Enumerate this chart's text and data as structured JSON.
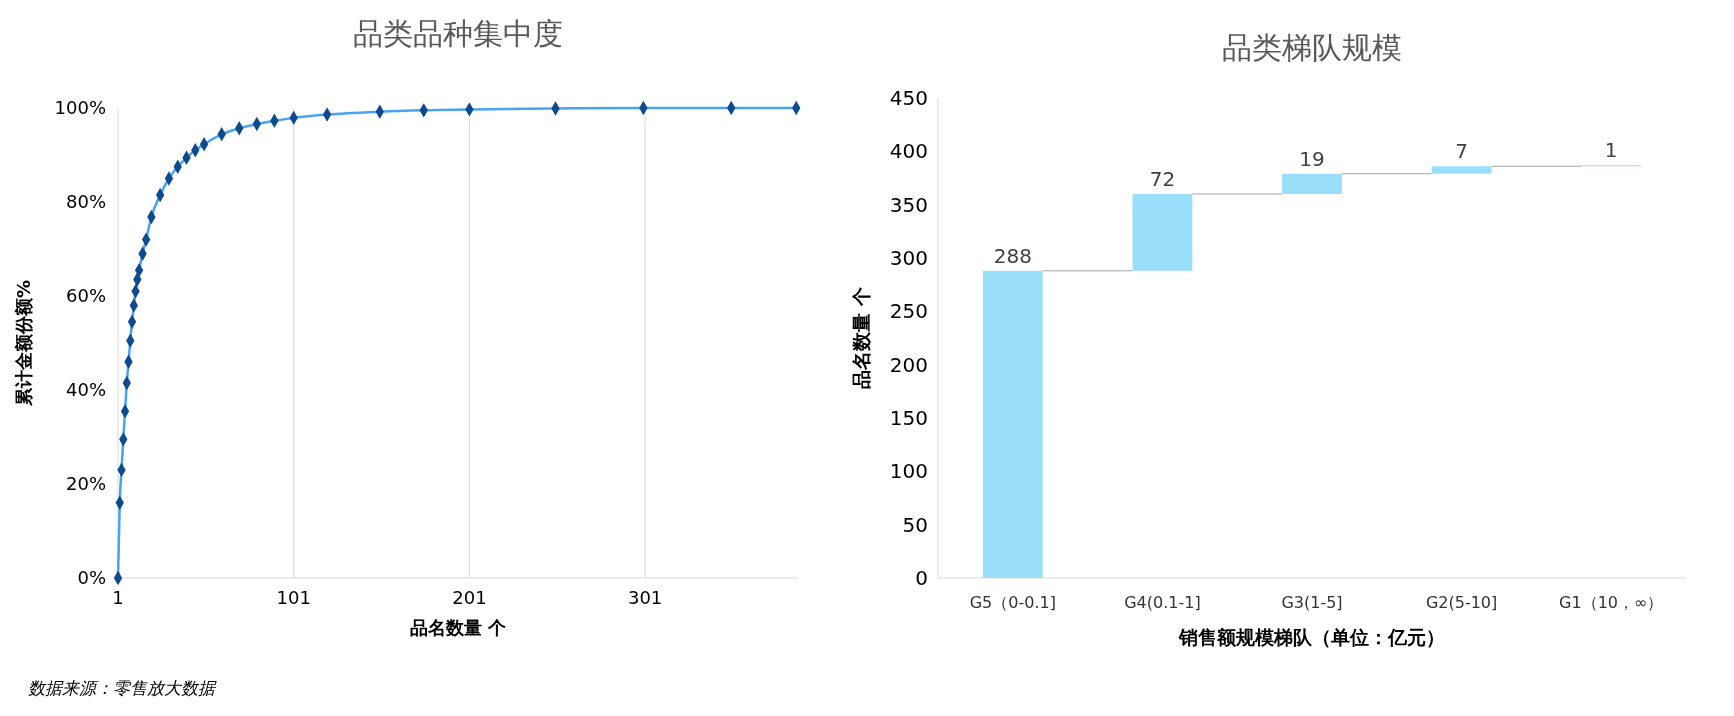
{
  "chart_data": [
    {
      "type": "line",
      "title": "品类品种集中度",
      "xlabel": "品名数量 个",
      "ylabel": "累计金额份额%",
      "grid": "x",
      "marker": "diamond",
      "line_style": "solid",
      "x": [
        1,
        2,
        3,
        4,
        5,
        6,
        7,
        8,
        9,
        10,
        11,
        12,
        13,
        15,
        17,
        20,
        25,
        30,
        35,
        40,
        45,
        50,
        60,
        70,
        80,
        90,
        101,
        120,
        150,
        175,
        201,
        250,
        300,
        350,
        387
      ],
      "series": [
        {
          "color": "#0d4a8e",
          "values": [
            0,
            16,
            23,
            29.5,
            35.5,
            41.5,
            46,
            50.5,
            54.5,
            58,
            61,
            63.5,
            65.5,
            69,
            72,
            76.8,
            81.5,
            85,
            87.5,
            89.4,
            91,
            92.3,
            94.4,
            95.7,
            96.6,
            97.3,
            97.9,
            98.6,
            99.2,
            99.5,
            99.7,
            99.9,
            100,
            100,
            100
          ]
        }
      ],
      "xlim": [
        1,
        388
      ],
      "xticks": [
        1,
        101,
        201,
        301
      ],
      "ylim": [
        0,
        100
      ],
      "yticks": [
        {
          "value": 0,
          "label": "0%"
        },
        {
          "value": 20,
          "label": "20%"
        },
        {
          "value": 40,
          "label": "40%"
        },
        {
          "value": 60,
          "label": "60%"
        },
        {
          "value": 80,
          "label": "80%"
        },
        {
          "value": 100,
          "label": "100%"
        }
      ],
      "annotations": [
        "数据来源：零售放大数据"
      ]
    },
    {
      "type": "bar",
      "title": "品类梯队规模",
      "xlabel": "销售额规模梯队（单位：亿元）",
      "ylabel": "品名数量 个",
      "grid": false,
      "data_labels": true,
      "categories": [
        "G5（0-0.1]",
        "G4(0.1-1]",
        "G3(1-5]",
        "G2(5-10]",
        "G1（10，∞）"
      ],
      "values": [
        288,
        72,
        19,
        7,
        1
      ],
      "base": [
        0,
        288,
        360,
        379,
        386
      ],
      "color": "#99dff9",
      "ylim": [
        0,
        450
      ],
      "yticks": [
        0,
        50,
        100,
        150,
        200,
        250,
        300,
        350,
        400,
        450
      ]
    }
  ]
}
